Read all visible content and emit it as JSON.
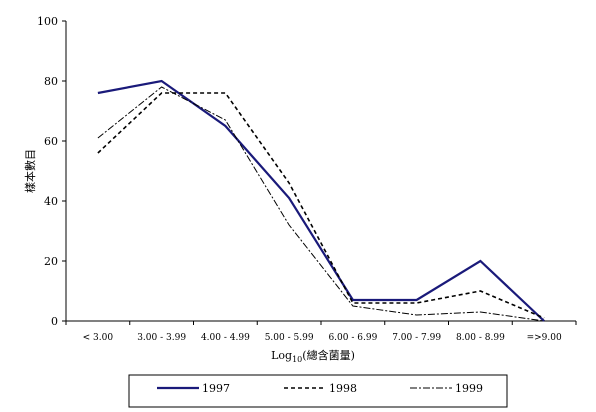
{
  "chart_data": {
    "type": "line",
    "title": "",
    "xlabel_main": "Log",
    "xlabel_sub": "10",
    "xlabel_rest": "(總含菌量)",
    "ylabel": "樣本數目",
    "ylim": [
      0,
      100
    ],
    "yticks": [
      0,
      20,
      40,
      60,
      80,
      100
    ],
    "categories": [
      "< 3.00",
      "3.00 - 3.99",
      "4.00 - 4.99",
      "5.00 - 5.99",
      "6.00 - 6.99",
      "7.00 - 7.99",
      "8.00 - 8.99",
      "=>9.00"
    ],
    "series": [
      {
        "name": "1997",
        "values": [
          76,
          80,
          65,
          41,
          7,
          7,
          20,
          0
        ],
        "color": "#1a1a7a",
        "style": "solid"
      },
      {
        "name": "1998",
        "values": [
          56,
          76,
          76,
          46,
          6,
          6,
          10,
          1
        ],
        "color": "#000000",
        "style": "dashed"
      },
      {
        "name": "1999",
        "values": [
          61,
          78,
          67,
          32,
          5,
          2,
          3,
          0
        ],
        "color": "#000000",
        "style": "dashdot"
      }
    ],
    "legend_position": "bottom"
  }
}
